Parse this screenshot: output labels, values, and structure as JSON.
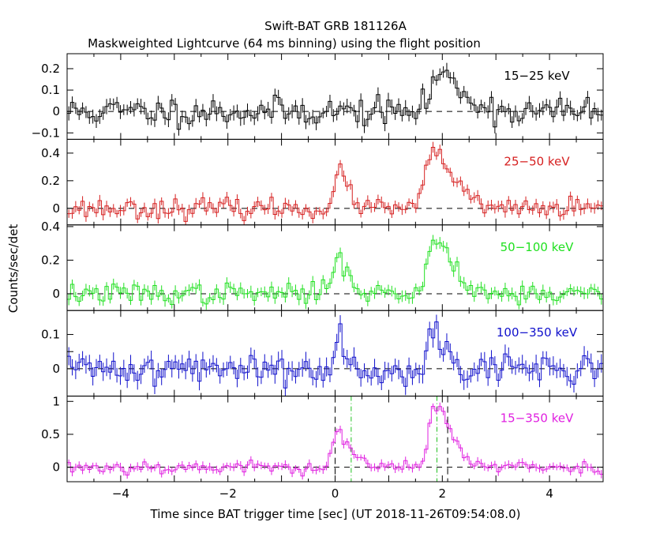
{
  "title": "Swift-BAT GRB 181126A",
  "subtitle": "Maskweighted Lightcurve (64 ms binning) using the flight position",
  "ylabel": "Counts/sec/det",
  "xlabel": "Time since BAT trigger time [sec] (UT 2018-11-26T09:54:08.0)",
  "chart_data": {
    "type": "line",
    "style": "step-histogram-with-error-bars",
    "xlim": [
      -5,
      5
    ],
    "x_ticks": [
      -4,
      -2,
      0,
      2,
      4
    ],
    "x_tick_labels": [
      "−4",
      "−2",
      "0",
      "2",
      "4"
    ],
    "bin_width_sec": 0.064,
    "reference_lines_x": {
      "black_dashed": [
        0,
        2.1
      ],
      "green_dashdot": [
        0.3,
        1.9
      ]
    },
    "panels": [
      {
        "name": "15−25 keV",
        "color": "#000000",
        "ylim": [
          -0.13,
          0.27
        ],
        "y_ticks": [
          -0.1,
          0,
          0.1,
          0.2
        ],
        "y_tick_labels": [
          "−0.1",
          "0",
          "0.1",
          "0.2"
        ],
        "noise": 0.033,
        "err": 0.03,
        "seed": 11,
        "pulses": [
          {
            "t": 1.9,
            "amp": 0.17,
            "rise": 0.12,
            "decay": 0.45
          }
        ]
      },
      {
        "name": "25−50 keV",
        "color": "#d62020",
        "ylim": [
          -0.12,
          0.5
        ],
        "y_ticks": [
          0,
          0.2,
          0.4
        ],
        "y_tick_labels": [
          "0",
          "0.2",
          "0.4"
        ],
        "noise": 0.035,
        "err": 0.035,
        "seed": 23,
        "pulses": [
          {
            "t": 0.05,
            "amp": 0.24,
            "rise": 0.07,
            "decay": 0.2
          },
          {
            "t": 1.85,
            "amp": 0.4,
            "rise": 0.15,
            "decay": 0.35
          }
        ]
      },
      {
        "name": "50−100 keV",
        "color": "#20e020",
        "ylim": [
          -0.1,
          0.41
        ],
        "y_ticks": [
          0,
          0.2,
          0.4
        ],
        "y_tick_labels": [
          "0",
          "0.2",
          "0.4"
        ],
        "noise": 0.03,
        "err": 0.03,
        "seed": 37,
        "pulses": [
          {
            "t": 0.05,
            "amp": 0.2,
            "rise": 0.12,
            "decay": 0.22
          },
          {
            "t": 1.85,
            "amp": 0.32,
            "rise": 0.12,
            "decay": 0.35
          }
        ]
      },
      {
        "name": "100−350 keV",
        "color": "#1010cc",
        "ylim": [
          -0.08,
          0.17
        ],
        "y_ticks": [
          0,
          0.05,
          0.1
        ],
        "y_tick_labels": [
          "0",
          "",
          "0.1"
        ],
        "noise": 0.022,
        "err": 0.024,
        "seed": 41,
        "pulses": [
          {
            "t": 0.05,
            "amp": 0.08,
            "rise": 0.06,
            "decay": 0.2
          },
          {
            "t": 1.8,
            "amp": 0.1,
            "rise": 0.08,
            "decay": 0.25
          }
        ]
      },
      {
        "name": "15−350 keV",
        "color": "#e020e0",
        "ylim": [
          -0.22,
          1.08
        ],
        "y_ticks": [
          0,
          0.5,
          1
        ],
        "y_tick_labels": [
          "0",
          "0.5",
          "1"
        ],
        "noise": 0.05,
        "err": 0.055,
        "seed": 53,
        "pulses": [
          {
            "t": 0.05,
            "amp": 0.52,
            "rise": 0.1,
            "decay": 0.22
          },
          {
            "t": 1.85,
            "amp": 0.98,
            "rise": 0.1,
            "decay": 0.3
          }
        ]
      }
    ]
  }
}
